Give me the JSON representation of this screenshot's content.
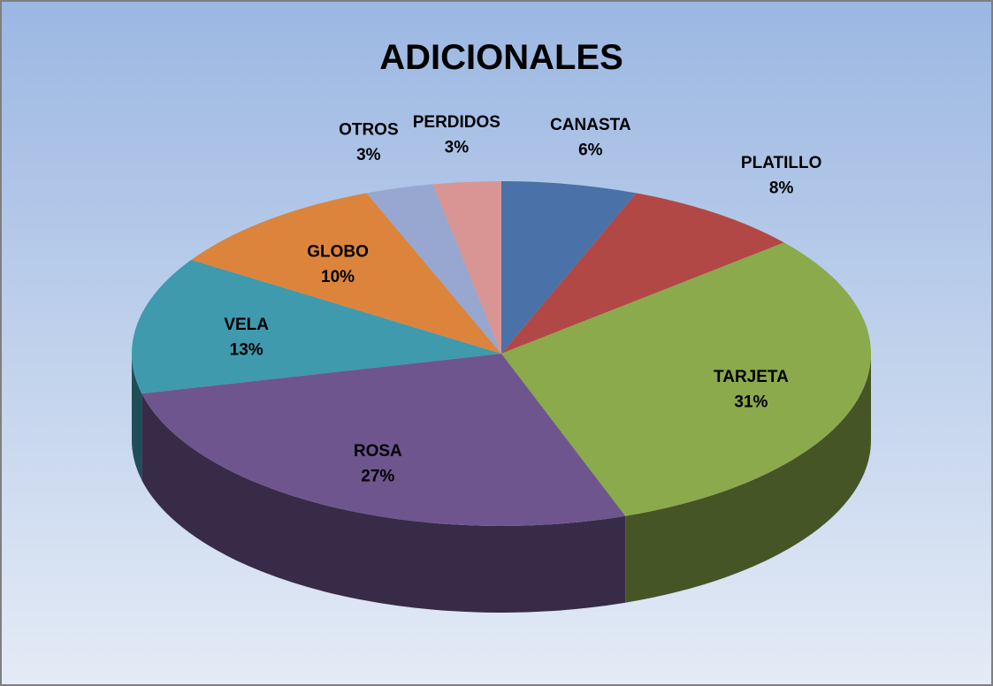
{
  "chart_data": {
    "type": "pie3d",
    "title": "ADICIONALES",
    "categories": [
      "CANASTA",
      "PLATILLO",
      "TARJETA",
      "ROSA",
      "VELA",
      "GLOBO",
      "OTROS",
      "PERDIDOS"
    ],
    "values": [
      6,
      8,
      31,
      27,
      13,
      10,
      3,
      3
    ],
    "value_labels": [
      "6%",
      "8%",
      "31%",
      "27%",
      "13%",
      "10%",
      "3%",
      "3%"
    ],
    "colors": [
      "#4a72a8",
      "#b24845",
      "#8aaa4c",
      "#6f558e",
      "#3f9aad",
      "#dc843c",
      "#97a7cf",
      "#d99594"
    ]
  }
}
